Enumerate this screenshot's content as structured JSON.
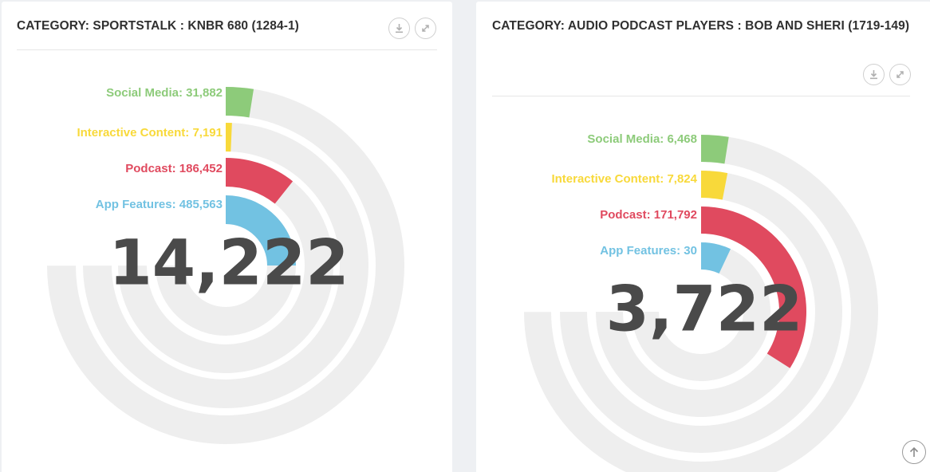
{
  "panels": [
    {
      "title": "CATEGORY: SPORTSTALK : KNBR 680 (1284-1)",
      "center_value": "14,222",
      "labels": [
        "Social Media: 31,882",
        "Interactive Content: 7,191",
        "Podcast: 186,452",
        "App Features: 485,563"
      ]
    },
    {
      "title": "CATEGORY: AUDIO PODCAST PLAYERS : BOB AND SHERI (1719-149)",
      "center_value": "3,722",
      "labels": [
        "Social Media: 6,468",
        "Interactive Content: 7,824",
        "Podcast: 171,792",
        "App Features: 30"
      ]
    }
  ],
  "icons": {
    "download": "download-icon",
    "expand": "expand-icon",
    "scroll_top": "arrow-up-icon"
  },
  "colors": {
    "social_media": "#8dcb7a",
    "interactive_content": "#f8d93a",
    "podcast": "#e04a5f",
    "app_features": "#72c2e2",
    "track": "#eeeeee",
    "center_text": "#4a4a4a"
  },
  "chart_data": [
    {
      "type": "radial-bar",
      "title": "CATEGORY: SPORTSTALK : KNBR 680 (1284-1)",
      "center_label": "14,222",
      "series": [
        {
          "name": "Social Media",
          "value": 31882,
          "fraction": 0.025
        },
        {
          "name": "Interactive Content",
          "value": 7191,
          "fraction": 0.007
        },
        {
          "name": "Podcast",
          "value": 186452,
          "fraction": 0.107
        },
        {
          "name": "App Features",
          "value": 485563,
          "fraction": 0.25
        }
      ]
    },
    {
      "type": "radial-bar",
      "title": "CATEGORY: AUDIO PODCAST PLAYERS : BOB AND SHERI (1719-149)",
      "center_label": "3,722",
      "series": [
        {
          "name": "Social Media",
          "value": 6468,
          "fraction": 0.025
        },
        {
          "name": "Interactive Content",
          "value": 7824,
          "fraction": 0.03
        },
        {
          "name": "Podcast",
          "value": 171792,
          "fraction": 0.34
        },
        {
          "name": "App Features",
          "value": 30,
          "fraction": 0.07
        }
      ]
    }
  ]
}
